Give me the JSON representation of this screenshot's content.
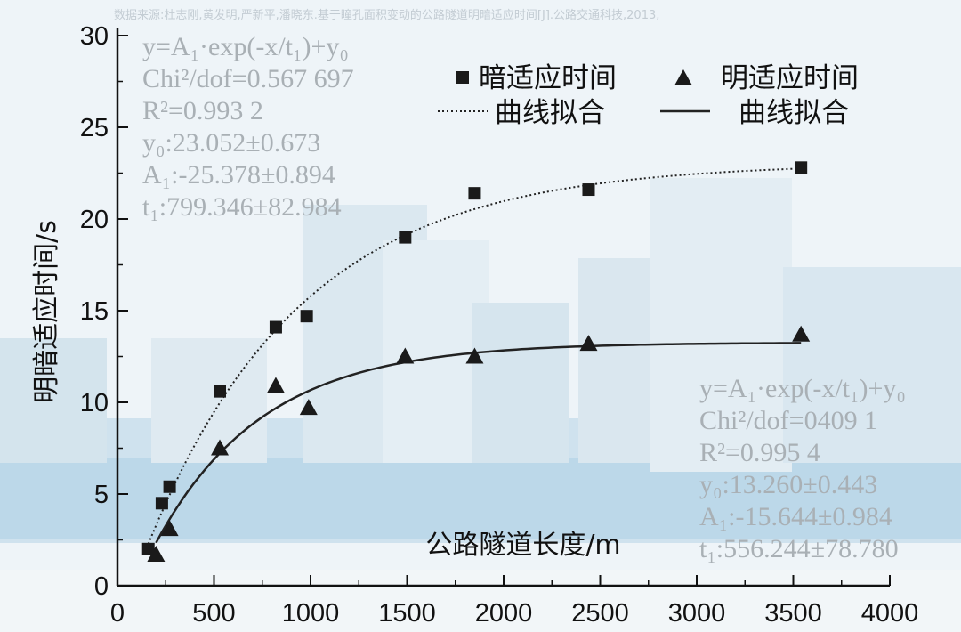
{
  "source_note": "数据来源:杜志刚,黄发明,严新平,潘晓东.基于瞳孔面积变动的公路隧道明暗适应时间[J].公路交通科技,2013,",
  "chart_data": {
    "type": "scatter",
    "xlabel": "公路隧道长度/m",
    "ylabel": "明暗适应时间/s",
    "xlim": [
      0,
      4000
    ],
    "ylim": [
      0,
      30
    ],
    "x_ticks": [
      0,
      500,
      1000,
      1500,
      2000,
      2500,
      3000,
      3500,
      4000
    ],
    "y_ticks": [
      0,
      5,
      10,
      15,
      20,
      25,
      30
    ],
    "grid": false,
    "legend_position": "top-right",
    "series": [
      {
        "name": "暗适应时间",
        "marker": "square",
        "color": "#1a1a1a",
        "points": [
          [
            160,
            2.0
          ],
          [
            230,
            4.5
          ],
          [
            270,
            5.4
          ],
          [
            530,
            10.6
          ],
          [
            820,
            14.1
          ],
          [
            980,
            14.7
          ],
          [
            1490,
            19.0
          ],
          [
            1850,
            21.4
          ],
          [
            2440,
            21.6
          ],
          [
            3540,
            22.8
          ]
        ]
      },
      {
        "name": "明适应时间",
        "marker": "triangle",
        "color": "#1a1a1a",
        "points": [
          [
            200,
            1.7
          ],
          [
            270,
            3.1
          ],
          [
            530,
            7.5
          ],
          [
            820,
            10.9
          ],
          [
            990,
            9.7
          ],
          [
            1490,
            12.5
          ],
          [
            1850,
            12.5
          ],
          [
            2440,
            13.2
          ],
          [
            3540,
            13.7
          ]
        ]
      }
    ],
    "fits": [
      {
        "name": "曲线拟合",
        "style": "dotted",
        "y0": 23.052,
        "A1": -25.378,
        "t1": 799.346,
        "x_range": [
          160,
          3540
        ],
        "stats": [
          "y=A₁·exp(-x/t₁)+y₀",
          "Chi²/dof=0.567 697",
          "R²=0.993 2",
          "y₀:23.052±0.673",
          "A₁:-25.378±0.894",
          "t₁:799.346±82.984"
        ]
      },
      {
        "name": "曲线拟合",
        "style": "solid",
        "y0": 13.26,
        "A1": -15.644,
        "t1": 556.244,
        "x_range": [
          200,
          3540
        ],
        "stats": [
          "y=A₁·exp(-x/t₁)+y₀",
          "Chi²/dof=0409 1",
          "R²=0.995 4",
          "y₀:13.260±0.443",
          "A₁:-15.644±0.984",
          "t₁:556.244±78.780"
        ]
      }
    ]
  }
}
